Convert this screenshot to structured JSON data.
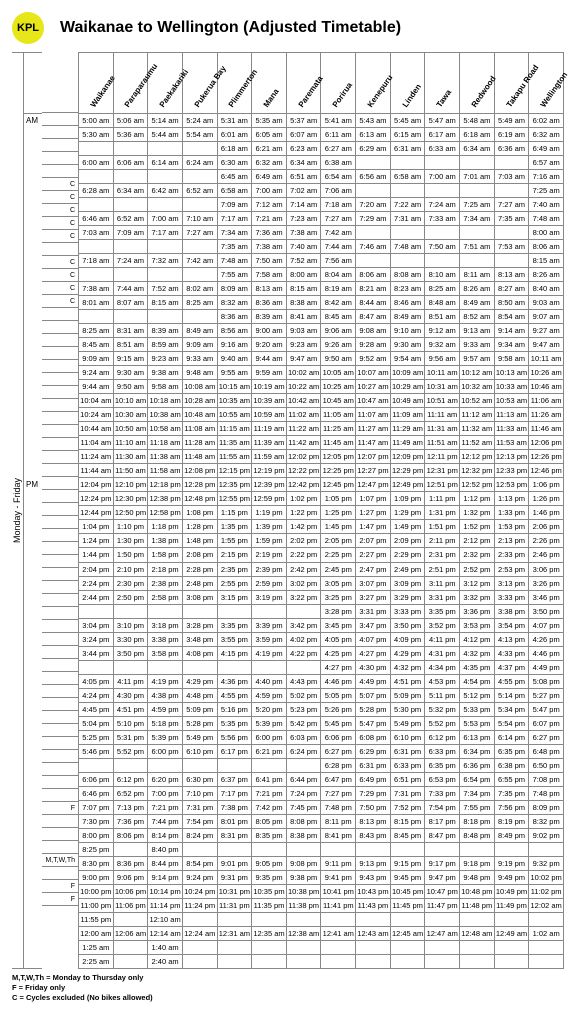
{
  "badge": "KPL",
  "title": "Waikanae to Wellington (Adjusted Timetable)",
  "day_label": "Monday - Friday",
  "stations": [
    "Waikanae",
    "Paraparaumu",
    "Paekakariki",
    "Pukerua Bay",
    "Plimmerton",
    "Mana",
    "Paremata",
    "Porirua",
    "Kenepuru",
    "Linden",
    "Tawa",
    "Redwood",
    "Takapu Road",
    "Wellington"
  ],
  "legend": [
    "M,T,W,Th = Monday to Thursday only",
    "F = Friday only",
    "C = Cycles excluded (No bikes allowed)"
  ],
  "am_index": 0,
  "pm_index": 26,
  "rows": [
    {
      "note": "",
      "t": [
        "5:00 am",
        "5:06 am",
        "5:14 am",
        "5:24 am",
        "5:31 am",
        "5:35 am",
        "5:37 am",
        "5:41 am",
        "5:43 am",
        "5:45 am",
        "5:47 am",
        "5:48 am",
        "5:49 am",
        "6:02 am"
      ]
    },
    {
      "note": "",
      "t": [
        "5:30 am",
        "5:36 am",
        "5:44 am",
        "5:54 am",
        "6:01 am",
        "6:05 am",
        "6:07 am",
        "6:11 am",
        "6:13 am",
        "6:15 am",
        "6:17 am",
        "6:18 am",
        "6:19 am",
        "6:32 am"
      ]
    },
    {
      "note": "",
      "t": [
        "",
        "",
        "",
        "",
        "6:18 am",
        "6:21 am",
        "6:23 am",
        "6:27 am",
        "6:29 am",
        "6:31 am",
        "6:33 am",
        "6:34 am",
        "6:36 am",
        "6:49 am"
      ]
    },
    {
      "note": "",
      "t": [
        "6:00 am",
        "6:06 am",
        "6:14 am",
        "6:24 am",
        "6:30 am",
        "6:32 am",
        "6:34 am",
        "6:38 am",
        "",
        "",
        "",
        "",
        "",
        "6:57 am"
      ]
    },
    {
      "note": "",
      "t": [
        "",
        "",
        "",
        "",
        "6:45 am",
        "6:49 am",
        "6:51 am",
        "6:54 am",
        "6:56 am",
        "6:58 am",
        "7:00 am",
        "7:01 am",
        "7:03 am",
        "7:16 am"
      ]
    },
    {
      "note": "C",
      "t": [
        "6:28 am",
        "6:34 am",
        "6:42 am",
        "6:52 am",
        "6:58 am",
        "7:00 am",
        "7:02 am",
        "7:06 am",
        "",
        "",
        "",
        "",
        "",
        "7:25 am"
      ]
    },
    {
      "note": "C",
      "t": [
        "",
        "",
        "",
        "",
        "7:09 am",
        "7:12 am",
        "7:14 am",
        "7:18 am",
        "7:20 am",
        "7:22 am",
        "7:24 am",
        "7:25 am",
        "7:27 am",
        "7:40 am"
      ]
    },
    {
      "note": "C",
      "t": [
        "6:46 am",
        "6:52 am",
        "7:00 am",
        "7:10 am",
        "7:17 am",
        "7:21 am",
        "7:23 am",
        "7:27 am",
        "7:29 am",
        "7:31 am",
        "7:33 am",
        "7:34 am",
        "7:35 am",
        "7:48 am"
      ]
    },
    {
      "note": "C",
      "t": [
        "7:03 am",
        "7:09 am",
        "7:17 am",
        "7:27 am",
        "7:34 am",
        "7:36 am",
        "7:38 am",
        "7:42 am",
        "",
        "",
        "",
        "",
        "",
        "8:00 am"
      ]
    },
    {
      "note": "C",
      "t": [
        "",
        "",
        "",
        "",
        "7:35 am",
        "7:38 am",
        "7:40 am",
        "7:44 am",
        "7:46 am",
        "7:48 am",
        "7:50 am",
        "7:51 am",
        "7:53 am",
        "8:06 am"
      ]
    },
    {
      "note": "",
      "t": [
        "7:18 am",
        "7:24 am",
        "7:32 am",
        "7:42 am",
        "7:48 am",
        "7:50 am",
        "7:52 am",
        "7:56 am",
        "",
        "",
        "",
        "",
        "",
        "8:15 am"
      ]
    },
    {
      "note": "C",
      "t": [
        "",
        "",
        "",
        "",
        "7:55 am",
        "7:58 am",
        "8:00 am",
        "8:04 am",
        "8:06 am",
        "8:08 am",
        "8:10 am",
        "8:11 am",
        "8:13 am",
        "8:26 am"
      ]
    },
    {
      "note": "C",
      "t": [
        "7:38 am",
        "7:44 am",
        "7:52 am",
        "8:02 am",
        "8:09 am",
        "8:13 am",
        "8:15 am",
        "8:19 am",
        "8:21 am",
        "8:23 am",
        "8:25 am",
        "8:26 am",
        "8:27 am",
        "8:40 am"
      ]
    },
    {
      "note": "C",
      "t": [
        "8:01 am",
        "8:07 am",
        "8:15 am",
        "8:25 am",
        "8:32 am",
        "8:36 am",
        "8:38 am",
        "8:42 am",
        "8:44 am",
        "8:46 am",
        "8:48 am",
        "8:49 am",
        "8:50 am",
        "9:03 am"
      ]
    },
    {
      "note": "C",
      "t": [
        "",
        "",
        "",
        "",
        "8:36 am",
        "8:39 am",
        "8:41 am",
        "8:45 am",
        "8:47 am",
        "8:49 am",
        "8:51 am",
        "8:52 am",
        "8:54 am",
        "9:07 am"
      ]
    },
    {
      "note": "",
      "t": [
        "8:25 am",
        "8:31 am",
        "8:39 am",
        "8:49 am",
        "8:56 am",
        "9:00 am",
        "9:03 am",
        "9:06 am",
        "9:08 am",
        "9:10 am",
        "9:12 am",
        "9:13 am",
        "9:14 am",
        "9:27 am"
      ]
    },
    {
      "note": "",
      "t": [
        "8:45 am",
        "8:51 am",
        "8:59 am",
        "9:09 am",
        "9:16 am",
        "9:20 am",
        "9:23 am",
        "9:26 am",
        "9:28 am",
        "9:30 am",
        "9:32 am",
        "9:33 am",
        "9:34 am",
        "9:47 am"
      ]
    },
    {
      "note": "",
      "t": [
        "9:09 am",
        "9:15 am",
        "9:23 am",
        "9:33 am",
        "9:40 am",
        "9:44 am",
        "9:47 am",
        "9:50 am",
        "9:52 am",
        "9:54 am",
        "9:56 am",
        "9:57 am",
        "9:58 am",
        "10:11 am"
      ]
    },
    {
      "note": "",
      "t": [
        "9:24 am",
        "9:30 am",
        "9:38 am",
        "9:48 am",
        "9:55 am",
        "9:59 am",
        "10:02 am",
        "10:05 am",
        "10:07 am",
        "10:09 am",
        "10:11 am",
        "10:12 am",
        "10:13 am",
        "10:26 am"
      ]
    },
    {
      "note": "",
      "t": [
        "9:44 am",
        "9:50 am",
        "9:58 am",
        "10:08 am",
        "10:15 am",
        "10:19 am",
        "10:22 am",
        "10:25 am",
        "10:27 am",
        "10:29 am",
        "10:31 am",
        "10:32 am",
        "10:33 am",
        "10:46 am"
      ]
    },
    {
      "note": "",
      "t": [
        "10:04 am",
        "10:10 am",
        "10:18 am",
        "10:28 am",
        "10:35 am",
        "10:39 am",
        "10:42 am",
        "10:45 am",
        "10:47 am",
        "10:49 am",
        "10:51 am",
        "10:52 am",
        "10:53 am",
        "11:06 am"
      ]
    },
    {
      "note": "",
      "t": [
        "10:24 am",
        "10:30 am",
        "10:38 am",
        "10:48 am",
        "10:55 am",
        "10:59 am",
        "11:02 am",
        "11:05 am",
        "11:07 am",
        "11:09 am",
        "11:11 am",
        "11:12 am",
        "11:13 am",
        "11:26 am"
      ]
    },
    {
      "note": "",
      "t": [
        "10:44 am",
        "10:50 am",
        "10:58 am",
        "11:08 am",
        "11:15 am",
        "11:19 am",
        "11:22 am",
        "11:25 am",
        "11:27 am",
        "11:29 am",
        "11:31 am",
        "11:32 am",
        "11:33 am",
        "11:46 am"
      ]
    },
    {
      "note": "",
      "t": [
        "11:04 am",
        "11:10 am",
        "11:18 am",
        "11:28 am",
        "11:35 am",
        "11:39 am",
        "11:42 am",
        "11:45 am",
        "11:47 am",
        "11:49 am",
        "11:51 am",
        "11:52 am",
        "11:53 am",
        "12:06 pm"
      ]
    },
    {
      "note": "",
      "t": [
        "11:24 am",
        "11:30 am",
        "11:38 am",
        "11:48 am",
        "11:55 am",
        "11:59 am",
        "12:02 pm",
        "12:05 pm",
        "12:07 pm",
        "12:09 pm",
        "12:11 pm",
        "12:12 pm",
        "12:13 pm",
        "12:26 pm"
      ]
    },
    {
      "note": "",
      "t": [
        "11:44 am",
        "11:50 am",
        "11:58 am",
        "12:08 pm",
        "12:15 pm",
        "12:19 pm",
        "12:22 pm",
        "12:25 pm",
        "12:27 pm",
        "12:29 pm",
        "12:31 pm",
        "12:32 pm",
        "12:33 pm",
        "12:46 pm"
      ]
    },
    {
      "note": "",
      "t": [
        "12:04 pm",
        "12:10 pm",
        "12:18 pm",
        "12:28 pm",
        "12:35 pm",
        "12:39 pm",
        "12:42 pm",
        "12:45 pm",
        "12:47 pm",
        "12:49 pm",
        "12:51 pm",
        "12:52 pm",
        "12:53 pm",
        "1:06 pm"
      ]
    },
    {
      "note": "",
      "t": [
        "12:24 pm",
        "12:30 pm",
        "12:38 pm",
        "12:48 pm",
        "12:55 pm",
        "12:59 pm",
        "1:02 pm",
        "1:05 pm",
        "1:07 pm",
        "1:09 pm",
        "1:11 pm",
        "1:12 pm",
        "1:13 pm",
        "1:26 pm"
      ]
    },
    {
      "note": "",
      "t": [
        "12:44 pm",
        "12:50 pm",
        "12:58 pm",
        "1:08 pm",
        "1:15 pm",
        "1:19 pm",
        "1:22 pm",
        "1:25 pm",
        "1:27 pm",
        "1:29 pm",
        "1:31 pm",
        "1:32 pm",
        "1:33 pm",
        "1:46 pm"
      ]
    },
    {
      "note": "",
      "t": [
        "1:04 pm",
        "1:10 pm",
        "1:18 pm",
        "1:28 pm",
        "1:35 pm",
        "1:39 pm",
        "1:42 pm",
        "1:45 pm",
        "1:47 pm",
        "1:49 pm",
        "1:51 pm",
        "1:52 pm",
        "1:53 pm",
        "2:06 pm"
      ]
    },
    {
      "note": "",
      "t": [
        "1:24 pm",
        "1:30 pm",
        "1:38 pm",
        "1:48 pm",
        "1:55 pm",
        "1:59 pm",
        "2:02 pm",
        "2:05 pm",
        "2:07 pm",
        "2:09 pm",
        "2:11 pm",
        "2:12 pm",
        "2:13 pm",
        "2:26 pm"
      ]
    },
    {
      "note": "",
      "t": [
        "1:44 pm",
        "1:50 pm",
        "1:58 pm",
        "2:08 pm",
        "2:15 pm",
        "2:19 pm",
        "2:22 pm",
        "2:25 pm",
        "2:27 pm",
        "2:29 pm",
        "2:31 pm",
        "2:32 pm",
        "2:33 pm",
        "2:46 pm"
      ]
    },
    {
      "note": "",
      "t": [
        "2:04 pm",
        "2:10 pm",
        "2:18 pm",
        "2:28 pm",
        "2:35 pm",
        "2:39 pm",
        "2:42 pm",
        "2:45 pm",
        "2:47 pm",
        "2:49 pm",
        "2:51 pm",
        "2:52 pm",
        "2:53 pm",
        "3:06 pm"
      ]
    },
    {
      "note": "",
      "t": [
        "2:24 pm",
        "2:30 pm",
        "2:38 pm",
        "2:48 pm",
        "2:55 pm",
        "2:59 pm",
        "3:02 pm",
        "3:05 pm",
        "3:07 pm",
        "3:09 pm",
        "3:11 pm",
        "3:12 pm",
        "3:13 pm",
        "3:26 pm"
      ]
    },
    {
      "note": "",
      "t": [
        "2:44 pm",
        "2:50 pm",
        "2:58 pm",
        "3:08 pm",
        "3:15 pm",
        "3:19 pm",
        "3:22 pm",
        "3:25 pm",
        "3:27 pm",
        "3:29 pm",
        "3:31 pm",
        "3:32 pm",
        "3:33 pm",
        "3:46 pm"
      ]
    },
    {
      "note": "",
      "t": [
        "",
        "",
        "",
        "",
        "",
        "",
        "",
        "3:28 pm",
        "3:31 pm",
        "3:33 pm",
        "3:35 pm",
        "3:36 pm",
        "3:38 pm",
        "3:50 pm"
      ]
    },
    {
      "note": "",
      "t": [
        "3:04 pm",
        "3:10 pm",
        "3:18 pm",
        "3:28 pm",
        "3:35 pm",
        "3:39 pm",
        "3:42 pm",
        "3:45 pm",
        "3:47 pm",
        "3:50 pm",
        "3:52 pm",
        "3:53 pm",
        "3:54 pm",
        "4:07 pm"
      ]
    },
    {
      "note": "",
      "t": [
        "3:24 pm",
        "3:30 pm",
        "3:38 pm",
        "3:48 pm",
        "3:55 pm",
        "3:59 pm",
        "4:02 pm",
        "4:05 pm",
        "4:07 pm",
        "4:09 pm",
        "4:11 pm",
        "4:12 pm",
        "4:13 pm",
        "4:26 pm"
      ]
    },
    {
      "note": "",
      "t": [
        "3:44 pm",
        "3:50 pm",
        "3:58 pm",
        "4:08 pm",
        "4:15 pm",
        "4:19 pm",
        "4:22 pm",
        "4:25 pm",
        "4:27 pm",
        "4:29 pm",
        "4:31 pm",
        "4:32 pm",
        "4:33 pm",
        "4:46 pm"
      ]
    },
    {
      "note": "",
      "t": [
        "",
        "",
        "",
        "",
        "",
        "",
        "",
        "4:27 pm",
        "4:30 pm",
        "4:32 pm",
        "4:34 pm",
        "4:35 pm",
        "4:37 pm",
        "4:49 pm"
      ]
    },
    {
      "note": "",
      "t": [
        "4:05 pm",
        "4:11 pm",
        "4:19 pm",
        "4:29 pm",
        "4:36 pm",
        "4:40 pm",
        "4:43 pm",
        "4:46 pm",
        "4:49 pm",
        "4:51 pm",
        "4:53 pm",
        "4:54 pm",
        "4:55 pm",
        "5:08 pm"
      ]
    },
    {
      "note": "",
      "t": [
        "4:24 pm",
        "4:30 pm",
        "4:38 pm",
        "4:48 pm",
        "4:55 pm",
        "4:59 pm",
        "5:02 pm",
        "5:05 pm",
        "5:07 pm",
        "5:09 pm",
        "5:11 pm",
        "5:12 pm",
        "5:14 pm",
        "5:27 pm"
      ]
    },
    {
      "note": "",
      "t": [
        "4:45 pm",
        "4:51 pm",
        "4:59 pm",
        "5:09 pm",
        "5:16 pm",
        "5:20 pm",
        "5:23 pm",
        "5:26 pm",
        "5:28 pm",
        "5:30 pm",
        "5:32 pm",
        "5:33 pm",
        "5:34 pm",
        "5:47 pm"
      ]
    },
    {
      "note": "",
      "t": [
        "5:04 pm",
        "5:10 pm",
        "5:18 pm",
        "5:28 pm",
        "5:35 pm",
        "5:39 pm",
        "5:42 pm",
        "5:45 pm",
        "5:47 pm",
        "5:49 pm",
        "5:52 pm",
        "5:53 pm",
        "5:54 pm",
        "6:07 pm"
      ]
    },
    {
      "note": "",
      "t": [
        "5:25 pm",
        "5:31 pm",
        "5:39 pm",
        "5:49 pm",
        "5:56 pm",
        "6:00 pm",
        "6:03 pm",
        "6:06 pm",
        "6:08 pm",
        "6:10 pm",
        "6:12 pm",
        "6:13 pm",
        "6:14 pm",
        "6:27 pm"
      ]
    },
    {
      "note": "",
      "t": [
        "5:46 pm",
        "5:52 pm",
        "6:00 pm",
        "6:10 pm",
        "6:17 pm",
        "6:21 pm",
        "6:24 pm",
        "6:27 pm",
        "6:29 pm",
        "6:31 pm",
        "6:33 pm",
        "6:34 pm",
        "6:35 pm",
        "6:48 pm"
      ]
    },
    {
      "note": "",
      "t": [
        "",
        "",
        "",
        "",
        "",
        "",
        "",
        "6:28 pm",
        "6:31 pm",
        "6:33 pm",
        "6:35 pm",
        "6:36 pm",
        "6:38 pm",
        "6:50 pm"
      ]
    },
    {
      "note": "",
      "t": [
        "6:06 pm",
        "6:12 pm",
        "6:20 pm",
        "6:30 pm",
        "6:37 pm",
        "6:41 pm",
        "6:44 pm",
        "6:47 pm",
        "6:49 pm",
        "6:51 pm",
        "6:53 pm",
        "6:54 pm",
        "6:55 pm",
        "7:08 pm"
      ]
    },
    {
      "note": "",
      "t": [
        "6:46 pm",
        "6:52 pm",
        "7:00 pm",
        "7:10 pm",
        "7:17 pm",
        "7:21 pm",
        "7:24 pm",
        "7:27 pm",
        "7:29 pm",
        "7:31 pm",
        "7:33 pm",
        "7:34 pm",
        "7:35 pm",
        "7:48 pm"
      ]
    },
    {
      "note": "",
      "t": [
        "7:07 pm",
        "7:13 pm",
        "7:21 pm",
        "7:31 pm",
        "7:38 pm",
        "7:42 pm",
        "7:45 pm",
        "7:48 pm",
        "7:50 pm",
        "7:52 pm",
        "7:54 pm",
        "7:55 pm",
        "7:56 pm",
        "8:09 pm"
      ]
    },
    {
      "note": "",
      "t": [
        "7:30 pm",
        "7:36 pm",
        "7:44 pm",
        "7:54 pm",
        "8:01 pm",
        "8:05 pm",
        "8:08 pm",
        "8:11 pm",
        "8:13 pm",
        "8:15 pm",
        "8:17 pm",
        "8:18 pm",
        "8:19 pm",
        "8:32 pm"
      ]
    },
    {
      "note": "",
      "t": [
        "8:00 pm",
        "8:06 pm",
        "8:14 pm",
        "8:24 pm",
        "8:31 pm",
        "8:35 pm",
        "8:38 pm",
        "8:41 pm",
        "8:43 pm",
        "8:45 pm",
        "8:47 pm",
        "8:48 pm",
        "8:49 pm",
        "9:02 pm"
      ]
    },
    {
      "note": "",
      "t": [
        "8:25 pm",
        "",
        "8:40 pm",
        "",
        "",
        "",
        "",
        "",
        "",
        "",
        "",
        "",
        "",
        ""
      ]
    },
    {
      "note": "F",
      "t": [
        "8:30 pm",
        "8:36 pm",
        "8:44 pm",
        "8:54 pm",
        "9:01 pm",
        "9:05 pm",
        "9:08 pm",
        "9:11 pm",
        "9:13 pm",
        "9:15 pm",
        "9:17 pm",
        "9:18 pm",
        "9:19 pm",
        "9:32 pm"
      ]
    },
    {
      "note": "",
      "t": [
        "9:00 pm",
        "9:06 pm",
        "9:14 pm",
        "9:24 pm",
        "9:31 pm",
        "9:35 pm",
        "9:38 pm",
        "9:41 pm",
        "9:43 pm",
        "9:45 pm",
        "9:47 pm",
        "9:48 pm",
        "9:49 pm",
        "10:02 pm"
      ]
    },
    {
      "note": "",
      "t": [
        "10:00 pm",
        "10:06 pm",
        "10:14 pm",
        "10:24 pm",
        "10:31 pm",
        "10:35 pm",
        "10:38 pm",
        "10:41 pm",
        "10:43 pm",
        "10:45 pm",
        "10:47 pm",
        "10:48 pm",
        "10:49 pm",
        "11:02 pm"
      ]
    },
    {
      "note": "",
      "t": [
        "11:00 pm",
        "11:06 pm",
        "11:14 pm",
        "11:24 pm",
        "11:31 pm",
        "11:35 pm",
        "11:38 pm",
        "11:41 pm",
        "11:43 pm",
        "11:45 pm",
        "11:47 pm",
        "11:48 pm",
        "11:49 pm",
        "12:02 am"
      ]
    },
    {
      "note": "M,T,W,Th",
      "t": [
        "11:55 pm",
        "",
        "12:10 am",
        "",
        "",
        "",
        "",
        "",
        "",
        "",
        "",
        "",
        "",
        ""
      ]
    },
    {
      "note": "",
      "t": [
        "12:00 am",
        "12:06 am",
        "12:14 am",
        "12:24 am",
        "12:31 am",
        "12:35 am",
        "12:38 am",
        "12:41 am",
        "12:43 am",
        "12:45 am",
        "12:47 am",
        "12:48 am",
        "12:49 am",
        "1:02 am"
      ]
    },
    {
      "note": "F",
      "t": [
        "1:25 am",
        "",
        "1:40 am",
        "",
        "",
        "",
        "",
        "",
        "",
        "",
        "",
        "",
        "",
        ""
      ]
    },
    {
      "note": "F",
      "t": [
        "2:25 am",
        "",
        "2:40 am",
        "",
        "",
        "",
        "",
        "",
        "",
        "",
        "",
        "",
        "",
        ""
      ]
    }
  ]
}
